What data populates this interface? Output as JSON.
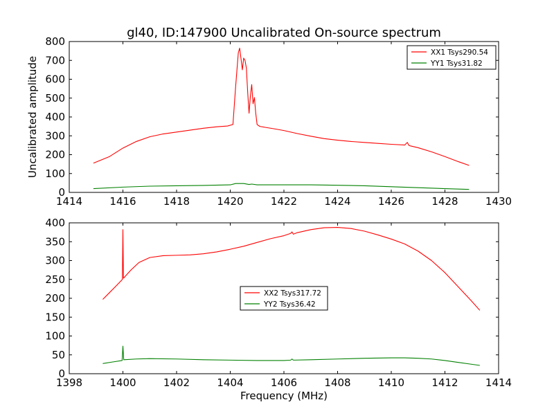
{
  "chart_data": [
    {
      "type": "line",
      "title": "gl40, ID:147900 Uncalibrated On-source spectrum",
      "xlabel": "",
      "ylabel": "Uncalibrated amplitude",
      "xlim": [
        1414,
        1430
      ],
      "ylim": [
        0,
        800
      ],
      "xticks": [
        "1414",
        "1416",
        "1418",
        "1420",
        "1422",
        "1424",
        "1426",
        "1428",
        "1430"
      ],
      "yticks": [
        "0",
        "100",
        "200",
        "300",
        "400",
        "500",
        "600",
        "700",
        "800"
      ],
      "legend_position": "top-right",
      "series": [
        {
          "name": "XX1 Tsys290.54",
          "color": "#ff0000",
          "x": [
            1414.9,
            1415.5,
            1416.0,
            1416.5,
            1417.0,
            1417.5,
            1418.0,
            1418.5,
            1419.0,
            1419.5,
            1419.9,
            1420.1,
            1420.2,
            1420.3,
            1420.35,
            1420.4,
            1420.45,
            1420.5,
            1420.55,
            1420.6,
            1420.65,
            1420.7,
            1420.75,
            1420.8,
            1420.85,
            1420.9,
            1420.95,
            1421.0,
            1421.1,
            1421.3,
            1421.6,
            1422.0,
            1422.5,
            1423.0,
            1423.5,
            1424.0,
            1424.5,
            1425.0,
            1425.5,
            1426.0,
            1426.5,
            1426.6,
            1426.65,
            1426.7,
            1427.0,
            1427.5,
            1428.0,
            1428.5,
            1428.9
          ],
          "values": [
            155,
            190,
            235,
            270,
            295,
            310,
            320,
            330,
            340,
            348,
            352,
            360,
            560,
            740,
            765,
            710,
            650,
            712,
            700,
            660,
            530,
            420,
            510,
            572,
            470,
            503,
            420,
            360,
            350,
            345,
            338,
            328,
            312,
            298,
            285,
            277,
            270,
            265,
            260,
            255,
            251,
            265,
            250,
            247,
            237,
            215,
            190,
            163,
            143
          ]
        },
        {
          "name": "YY1 Tsys31.82",
          "color": "#008000",
          "x": [
            1414.9,
            1416.0,
            1417.0,
            1418.0,
            1419.0,
            1420.0,
            1420.2,
            1420.5,
            1420.7,
            1420.8,
            1421.0,
            1422.0,
            1423.0,
            1424.0,
            1425.0,
            1426.0,
            1427.0,
            1428.0,
            1428.9
          ],
          "values": [
            20,
            28,
            33,
            35,
            37,
            40,
            47,
            47,
            42,
            44,
            40,
            40,
            40,
            38,
            35,
            30,
            25,
            20,
            16
          ]
        }
      ]
    },
    {
      "type": "line",
      "title": "",
      "xlabel": "Frequency (MHz)",
      "ylabel": "",
      "xlim": [
        1398,
        1414
      ],
      "ylim": [
        0,
        400
      ],
      "xticks": [
        "1398",
        "1400",
        "1402",
        "1404",
        "1406",
        "1408",
        "1410",
        "1412",
        "1414"
      ],
      "yticks": [
        "0",
        "50",
        "100",
        "150",
        "200",
        "250",
        "300",
        "350",
        "400"
      ],
      "legend_position": "center",
      "series": [
        {
          "name": "XX2 Tsys317.72",
          "color": "#ff0000",
          "x": [
            1399.25,
            1399.5,
            1399.75,
            1399.98,
            1400.0,
            1400.02,
            1400.3,
            1400.6,
            1401.0,
            1401.5,
            1402.0,
            1402.5,
            1403.0,
            1403.5,
            1404.0,
            1404.5,
            1405.0,
            1405.5,
            1406.0,
            1406.25,
            1406.3,
            1406.35,
            1406.5,
            1407.0,
            1407.5,
            1408.0,
            1408.5,
            1409.0,
            1409.5,
            1410.0,
            1410.5,
            1411.0,
            1411.5,
            1412.0,
            1412.5,
            1413.0,
            1413.3
          ],
          "values": [
            197,
            215,
            233,
            250,
            382,
            253,
            275,
            295,
            308,
            313,
            314,
            315,
            318,
            323,
            330,
            338,
            348,
            358,
            366,
            372,
            376,
            370,
            374,
            382,
            387,
            388,
            385,
            378,
            368,
            357,
            344,
            325,
            300,
            268,
            230,
            192,
            168
          ]
        },
        {
          "name": "YY2 Tsys36.42",
          "color": "#008000",
          "x": [
            1399.25,
            1399.6,
            1399.97,
            1400.0,
            1400.03,
            1400.5,
            1401.0,
            1402.0,
            1403.0,
            1404.0,
            1405.0,
            1406.0,
            1406.25,
            1406.3,
            1406.35,
            1407.0,
            1408.0,
            1409.0,
            1410.0,
            1410.5,
            1411.0,
            1411.5,
            1412.0,
            1412.5,
            1413.0,
            1413.3
          ],
          "values": [
            27,
            31,
            35,
            73,
            37,
            39,
            40,
            39,
            37,
            36,
            35,
            35,
            36,
            39,
            36,
            37,
            39,
            41,
            42,
            42,
            41,
            39,
            35,
            30,
            25,
            22
          ]
        }
      ]
    }
  ]
}
